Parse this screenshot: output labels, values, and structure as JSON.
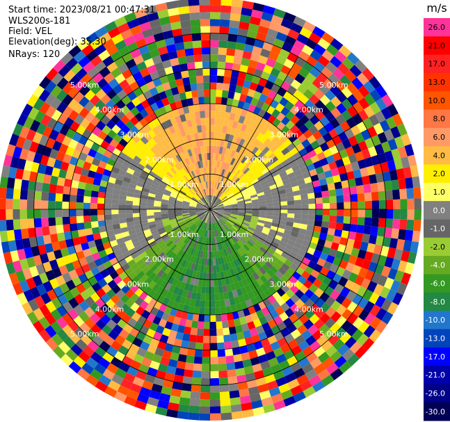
{
  "header": {
    "start_time": "Start time: 2023/08/21 00:47:31",
    "instrument": "WLS200s-181",
    "field": "Field: VEL",
    "elevation": "Elevation(deg): 35.30",
    "nrays": "NRays: 120"
  },
  "colorbar": {
    "unit": "m/s",
    "ticks": [
      "26.0",
      "21.0",
      "17.0",
      "13.0",
      "10.0",
      "8.0",
      "6.0",
      "4.0",
      "2.0",
      "1.0",
      "0.0",
      "-1.0",
      "-2.0",
      "-4.0",
      "-6.0",
      "-8.0",
      "-10.0",
      "-13.0",
      "-17.0",
      "-21.0",
      "-26.0",
      "-30.0"
    ],
    "colors": [
      "#ff3399",
      "#ff0000",
      "#ff2222",
      "#ff3300",
      "#ff5500",
      "#ff7744",
      "#ff9966",
      "#ffbb44",
      "#ffee00",
      "#ffff66",
      "#808080",
      "#666666",
      "#99cc33",
      "#66aa22",
      "#339922",
      "#228844",
      "#2277cc",
      "#0044bb",
      "#0000ff",
      "#0000aa",
      "#000088",
      "#000055"
    ]
  },
  "chart_data": {
    "type": "ppi",
    "field": "VEL",
    "units": "m/s",
    "nrays": 120,
    "elevation_deg": 35.3,
    "value_range": [
      -30,
      30
    ],
    "range_rings_km": [
      1.0,
      2.0,
      3.0,
      4.0,
      5.0
    ],
    "ring_labels": [
      "1.00km",
      "2.00km",
      "3.00km",
      "4.00km",
      "5.00km"
    ],
    "label_positions": [
      "upper-left",
      "upper-right",
      "lower-left",
      "lower-right"
    ],
    "max_range_km": 6.0,
    "pattern": {
      "near_center": "noisy green/grey near-zero velocities",
      "north_sector": "positive velocities (+8 to +13 m/s, orange-red)",
      "south_sector": "negative velocities (-6 to -10 m/s, green-blue)",
      "east_west": "near-zero / +2 m/s yellow band",
      "beyond_3km": "noise speckle across full color range"
    }
  }
}
